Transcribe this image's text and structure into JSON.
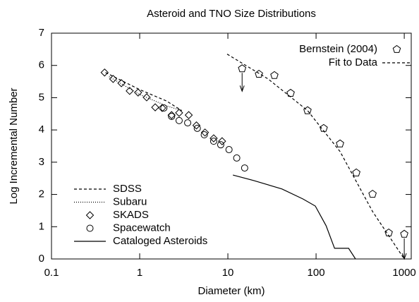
{
  "chart_data": {
    "type": "line",
    "title": "Asteroid and TNO Size Distributions",
    "x_label": "Diameter (km)",
    "y_label": "Log Incremental Number",
    "xscale": "log",
    "xlim": [
      0.1,
      1200
    ],
    "ylim": [
      0,
      7
    ],
    "xticks": [
      0.1,
      1,
      10,
      100,
      1000
    ],
    "yticks": [
      0,
      1,
      2,
      3,
      4,
      5,
      6,
      7
    ],
    "series": [
      {
        "name": "SDSS",
        "style": "dashed",
        "color": "#000000",
        "legend": "bottom left",
        "x": [
          0.41,
          1,
          2,
          3
        ],
        "values": [
          5.78,
          5.25,
          4.9,
          4.6
        ]
      },
      {
        "name": "Subaru",
        "style": "dotted",
        "color": "#000000",
        "legend": "bottom left",
        "x": [
          0.45,
          1,
          2,
          3
        ],
        "values": [
          5.65,
          5.1,
          4.75,
          4.6
        ]
      },
      {
        "name": "SKADS",
        "style": "diamond",
        "color": "#000000",
        "legend": "bottom left",
        "x": [
          0.4,
          0.5,
          0.62,
          0.77,
          0.96,
          1.2,
          1.5,
          1.8,
          2.3,
          2.8,
          3.6,
          4.4,
          5.5,
          6.9,
          8.6
        ],
        "values": [
          5.78,
          5.58,
          5.45,
          5.21,
          5.16,
          5.01,
          4.7,
          4.68,
          4.46,
          4.53,
          4.46,
          4.14,
          3.92,
          3.74,
          3.65
        ]
      },
      {
        "name": "Spacewatch",
        "style": "circle",
        "color": "#000000",
        "legend": "bottom left",
        "x": [
          1.88,
          2.3,
          2.8,
          3.5,
          4.5,
          5.4,
          6.9,
          8.3,
          10.3,
          12.6,
          15.5
        ],
        "values": [
          4.68,
          4.42,
          4.29,
          4.22,
          4.05,
          3.85,
          3.65,
          3.54,
          3.39,
          3.13,
          2.82
        ]
      },
      {
        "name": "Cataloged Asteroids",
        "style": "line",
        "color": "#000000",
        "legend": "bottom left",
        "x": [
          11.4,
          19.7,
          41,
          71,
          98,
          130,
          162,
          234,
          280
        ],
        "values": [
          2.6,
          2.43,
          2.17,
          1.86,
          1.64,
          1.03,
          0.33,
          0.33,
          0
        ]
      },
      {
        "name": "Bernstein (2004)",
        "style": "pentagon",
        "color": "#000000",
        "legend": "top right",
        "x": [
          14.5,
          22.5,
          33.7,
          51.5,
          80,
          122,
          187,
          286,
          437,
          667,
          1000
        ],
        "values": [
          5.9,
          5.73,
          5.69,
          5.14,
          4.6,
          4.05,
          3.57,
          2.67,
          2.01,
          0.81,
          0.77
        ]
      },
      {
        "name": "Fit to Data",
        "style": "dashed",
        "color": "#000000",
        "legend": "top right",
        "x": [
          9.8,
          28.6,
          80,
          187,
          437,
          1000
        ],
        "values": [
          6.35,
          5.58,
          4.6,
          3.33,
          1.47,
          0
        ]
      }
    ],
    "arrows": [
      {
        "x": 14.5,
        "from": 5.9,
        "to": 5.2
      },
      {
        "x": 1000,
        "from": 0.77,
        "to": 0
      }
    ]
  }
}
